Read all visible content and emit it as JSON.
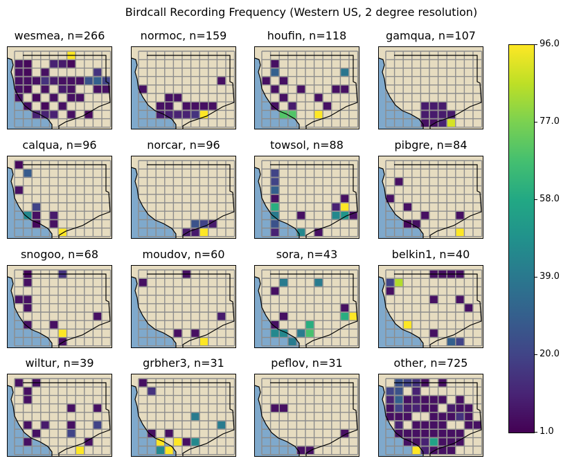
{
  "title": "Birdcall Recording Frequency (Western US, 2 degree resolution)",
  "colors": {
    "ocean": "#7fa9cc",
    "land": "#e6dcc0",
    "grid": "#8c8c8c",
    "border": "#000000"
  },
  "colorbar": {
    "min": 1.0,
    "max": 96.0,
    "ticks": [
      "1.0",
      "20.0",
      "39.0",
      "58.0",
      "77.0",
      "96.0"
    ]
  },
  "chart_data": {
    "type": "heatmap",
    "colormap": "viridis",
    "grid": {
      "cols": 11,
      "rows": 9
    },
    "panels": [
      {
        "title": "wesmea, n=266",
        "cells": [
          [
            6,
            0,
            96
          ],
          [
            0,
            1,
            5
          ],
          [
            1,
            1,
            3
          ],
          [
            4,
            1,
            10
          ],
          [
            5,
            1,
            8
          ],
          [
            6,
            1,
            3
          ],
          [
            0,
            2,
            5
          ],
          [
            1,
            2,
            3
          ],
          [
            3,
            2,
            5
          ],
          [
            9,
            2,
            15
          ],
          [
            0,
            3,
            5
          ],
          [
            1,
            3,
            5
          ],
          [
            2,
            3,
            5
          ],
          [
            3,
            3,
            15
          ],
          [
            4,
            3,
            8
          ],
          [
            5,
            3,
            5
          ],
          [
            6,
            3,
            5
          ],
          [
            7,
            3,
            5
          ],
          [
            8,
            3,
            25
          ],
          [
            9,
            3,
            30
          ],
          [
            10,
            3,
            20
          ],
          [
            0,
            4,
            5
          ],
          [
            1,
            4,
            3
          ],
          [
            3,
            4,
            5
          ],
          [
            5,
            4,
            8
          ],
          [
            6,
            4,
            5
          ],
          [
            9,
            4,
            5
          ],
          [
            10,
            4,
            5
          ],
          [
            0,
            5,
            5
          ],
          [
            2,
            5,
            3
          ],
          [
            4,
            5,
            5
          ],
          [
            6,
            5,
            5
          ],
          [
            7,
            5,
            5
          ],
          [
            1,
            6,
            5
          ],
          [
            3,
            6,
            3
          ],
          [
            5,
            6,
            5
          ],
          [
            2,
            7,
            10
          ],
          [
            3,
            7,
            10
          ],
          [
            4,
            7,
            10
          ],
          [
            6,
            7,
            5
          ],
          [
            8,
            7,
            3
          ]
        ]
      },
      {
        "title": "normoc, n=159",
        "cells": [
          [
            9,
            3,
            5
          ],
          [
            0,
            4,
            5
          ],
          [
            3,
            5,
            5
          ],
          [
            4,
            5,
            5
          ],
          [
            2,
            6,
            5
          ],
          [
            3,
            6,
            5
          ],
          [
            5,
            6,
            5
          ],
          [
            6,
            6,
            5
          ],
          [
            7,
            6,
            5
          ],
          [
            8,
            6,
            5
          ],
          [
            2,
            7,
            8
          ],
          [
            3,
            7,
            10
          ],
          [
            4,
            7,
            10
          ],
          [
            5,
            7,
            10
          ],
          [
            6,
            7,
            15
          ],
          [
            7,
            7,
            96
          ]
        ]
      },
      {
        "title": "houfin, n=118",
        "cells": [
          [
            1,
            1,
            5
          ],
          [
            1,
            2,
            30
          ],
          [
            9,
            2,
            38
          ],
          [
            0,
            3,
            5
          ],
          [
            2,
            3,
            5
          ],
          [
            1,
            4,
            5
          ],
          [
            4,
            4,
            5
          ],
          [
            8,
            4,
            5
          ],
          [
            9,
            4,
            5
          ],
          [
            2,
            5,
            5
          ],
          [
            6,
            5,
            5
          ],
          [
            1,
            6,
            5
          ],
          [
            3,
            6,
            8
          ],
          [
            7,
            6,
            5
          ],
          [
            2,
            7,
            70
          ],
          [
            3,
            7,
            70
          ],
          [
            6,
            7,
            96
          ]
        ]
      },
      {
        "title": "gamqua, n=107",
        "cells": [
          [
            4,
            6,
            8
          ],
          [
            5,
            6,
            8
          ],
          [
            6,
            6,
            8
          ],
          [
            4,
            7,
            8
          ],
          [
            5,
            7,
            8
          ],
          [
            6,
            7,
            8
          ],
          [
            7,
            7,
            8
          ],
          [
            4,
            8,
            5
          ],
          [
            5,
            8,
            5
          ],
          [
            6,
            8,
            10
          ],
          [
            7,
            8,
            90
          ]
        ]
      },
      {
        "title": "calqua, n=96",
        "cells": [
          [
            0,
            0,
            3
          ],
          [
            1,
            1,
            28
          ],
          [
            0,
            3,
            5
          ],
          [
            2,
            5,
            20
          ],
          [
            1,
            6,
            45
          ],
          [
            2,
            6,
            5
          ],
          [
            4,
            6,
            8
          ],
          [
            2,
            7,
            3
          ],
          [
            4,
            7,
            5
          ],
          [
            5,
            8,
            96
          ]
        ]
      },
      {
        "title": "norcar, n=96",
        "cells": [
          [
            6,
            7,
            25
          ],
          [
            7,
            7,
            20
          ],
          [
            8,
            7,
            8
          ],
          [
            5,
            8,
            8
          ],
          [
            6,
            8,
            8
          ],
          [
            7,
            8,
            96
          ]
        ]
      },
      {
        "title": "towsol, n=88",
        "cells": [
          [
            1,
            1,
            20
          ],
          [
            1,
            2,
            20
          ],
          [
            1,
            3,
            30
          ],
          [
            1,
            4,
            5
          ],
          [
            9,
            4,
            5
          ],
          [
            1,
            5,
            60
          ],
          [
            8,
            5,
            10
          ],
          [
            9,
            5,
            96
          ],
          [
            1,
            6,
            40
          ],
          [
            4,
            6,
            5
          ],
          [
            8,
            6,
            45
          ],
          [
            9,
            6,
            50
          ],
          [
            1,
            7,
            25
          ],
          [
            10,
            6,
            5
          ],
          [
            4,
            8,
            45
          ],
          [
            6,
            8,
            5
          ],
          [
            1,
            8,
            10
          ]
        ]
      },
      {
        "title": "pibgre, n=84",
        "cells": [
          [
            1,
            2,
            5
          ],
          [
            0,
            4,
            5
          ],
          [
            2,
            5,
            5
          ],
          [
            4,
            6,
            5
          ],
          [
            8,
            6,
            5
          ],
          [
            2,
            7,
            3
          ],
          [
            3,
            7,
            5
          ],
          [
            8,
            8,
            96
          ]
        ]
      },
      {
        "title": "snogoo, n=68",
        "cells": [
          [
            1,
            0,
            3
          ],
          [
            5,
            0,
            15
          ],
          [
            1,
            1,
            5
          ],
          [
            0,
            3,
            5
          ],
          [
            1,
            3,
            5
          ],
          [
            1,
            4,
            5
          ],
          [
            9,
            5,
            5
          ],
          [
            1,
            6,
            5
          ],
          [
            4,
            6,
            5
          ],
          [
            5,
            7,
            96
          ],
          [
            5,
            8,
            5
          ]
        ]
      },
      {
        "title": "moudov, n=60",
        "cells": [
          [
            5,
            0,
            5
          ],
          [
            0,
            1,
            5
          ],
          [
            9,
            5,
            8
          ],
          [
            4,
            7,
            5
          ],
          [
            6,
            7,
            5
          ],
          [
            7,
            8,
            96
          ]
        ]
      },
      {
        "title": "sora, n=43",
        "cells": [
          [
            2,
            1,
            40
          ],
          [
            6,
            1,
            40
          ],
          [
            1,
            2,
            5
          ],
          [
            9,
            4,
            5
          ],
          [
            2,
            5,
            5
          ],
          [
            9,
            5,
            60
          ],
          [
            10,
            5,
            96
          ],
          [
            1,
            6,
            5
          ],
          [
            5,
            6,
            60
          ],
          [
            1,
            7,
            45
          ],
          [
            2,
            7,
            45
          ],
          [
            4,
            7,
            40
          ],
          [
            5,
            7,
            68
          ],
          [
            3,
            8,
            40
          ]
        ]
      },
      {
        "title": "belkin1, n=40",
        "cells": [
          [
            5,
            0,
            5
          ],
          [
            6,
            0,
            5
          ],
          [
            7,
            0,
            5
          ],
          [
            8,
            0,
            5
          ],
          [
            0,
            1,
            20
          ],
          [
            1,
            1,
            85
          ],
          [
            0,
            2,
            5
          ],
          [
            5,
            3,
            5
          ],
          [
            8,
            3,
            5
          ],
          [
            9,
            4,
            5
          ],
          [
            2,
            6,
            96
          ],
          [
            5,
            7,
            5
          ],
          [
            7,
            8,
            30
          ],
          [
            8,
            8,
            20
          ]
        ]
      },
      {
        "title": "wiltur, n=39",
        "cells": [
          [
            0,
            0,
            5
          ],
          [
            2,
            0,
            5
          ],
          [
            1,
            1,
            5
          ],
          [
            1,
            2,
            5
          ],
          [
            6,
            3,
            5
          ],
          [
            9,
            3,
            5
          ],
          [
            1,
            5,
            5
          ],
          [
            3,
            5,
            8
          ],
          [
            6,
            5,
            5
          ],
          [
            9,
            5,
            20
          ],
          [
            2,
            6,
            5
          ],
          [
            6,
            6,
            20
          ],
          [
            1,
            7,
            5
          ],
          [
            8,
            7,
            5
          ],
          [
            7,
            8,
            96
          ]
        ]
      },
      {
        "title": "grbher3, n=31",
        "cells": [
          [
            0,
            0,
            5
          ],
          [
            1,
            1,
            15
          ],
          [
            6,
            4,
            40
          ],
          [
            9,
            5,
            40
          ],
          [
            1,
            6,
            5
          ],
          [
            3,
            6,
            5
          ],
          [
            2,
            7,
            96
          ],
          [
            4,
            7,
            96
          ],
          [
            5,
            7,
            5
          ],
          [
            6,
            7,
            45
          ],
          [
            3,
            8,
            96
          ],
          [
            2,
            8,
            45
          ]
        ]
      },
      {
        "title": "peflov, n=31",
        "cells": [
          [
            1,
            3,
            5
          ],
          [
            2,
            3,
            5
          ],
          [
            9,
            6,
            5
          ],
          [
            4,
            8,
            5
          ],
          [
            5,
            8,
            5
          ]
        ]
      },
      {
        "title": "other, n=725",
        "cells": [
          [
            1,
            0,
            25
          ],
          [
            2,
            0,
            20
          ],
          [
            3,
            0,
            15
          ],
          [
            4,
            0,
            5
          ],
          [
            6,
            0,
            5
          ],
          [
            0,
            1,
            20
          ],
          [
            1,
            1,
            25
          ],
          [
            3,
            1,
            10
          ],
          [
            0,
            2,
            10
          ],
          [
            1,
            2,
            30
          ],
          [
            2,
            2,
            5
          ],
          [
            3,
            2,
            8
          ],
          [
            4,
            2,
            5
          ],
          [
            5,
            2,
            5
          ],
          [
            6,
            2,
            5
          ],
          [
            8,
            2,
            5
          ],
          [
            0,
            3,
            5
          ],
          [
            1,
            3,
            20
          ],
          [
            2,
            3,
            8
          ],
          [
            3,
            3,
            10
          ],
          [
            4,
            3,
            5
          ],
          [
            5,
            3,
            5
          ],
          [
            7,
            3,
            8
          ],
          [
            8,
            3,
            5
          ],
          [
            9,
            3,
            5
          ],
          [
            0,
            4,
            5
          ],
          [
            1,
            4,
            5
          ],
          [
            2,
            4,
            5
          ],
          [
            5,
            4,
            5
          ],
          [
            6,
            4,
            5
          ],
          [
            7,
            4,
            5
          ],
          [
            8,
            4,
            15
          ],
          [
            9,
            4,
            5
          ],
          [
            1,
            5,
            10
          ],
          [
            3,
            5,
            5
          ],
          [
            4,
            5,
            5
          ],
          [
            5,
            5,
            5
          ],
          [
            6,
            5,
            5
          ],
          [
            9,
            5,
            5
          ],
          [
            10,
            5,
            5
          ],
          [
            1,
            6,
            5
          ],
          [
            2,
            6,
            5
          ],
          [
            3,
            6,
            5
          ],
          [
            4,
            6,
            5
          ],
          [
            5,
            6,
            5
          ],
          [
            6,
            6,
            5
          ],
          [
            7,
            6,
            5
          ],
          [
            8,
            6,
            5
          ],
          [
            2,
            7,
            5
          ],
          [
            3,
            7,
            5
          ],
          [
            4,
            7,
            10
          ],
          [
            5,
            7,
            55
          ],
          [
            6,
            7,
            5
          ],
          [
            7,
            7,
            5
          ],
          [
            8,
            7,
            5
          ],
          [
            3,
            8,
            96
          ],
          [
            4,
            8,
            10
          ],
          [
            5,
            8,
            5
          ],
          [
            6,
            8,
            5
          ],
          [
            7,
            8,
            5
          ]
        ]
      }
    ]
  }
}
